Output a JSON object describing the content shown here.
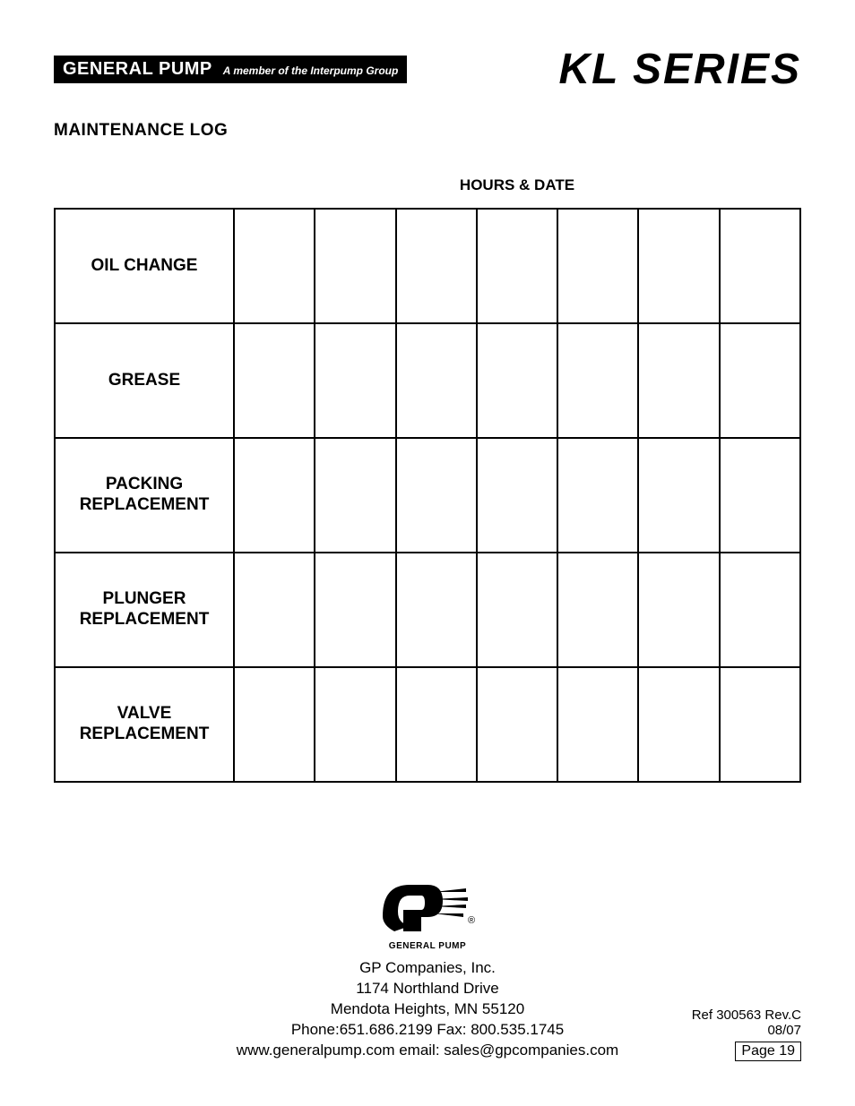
{
  "header": {
    "brand_name": "GENERAL PUMP",
    "brand_tagline": "A member of the Interpump Group",
    "series_title": "KL SERIES"
  },
  "section_title": "MAINTENANCE LOG",
  "table": {
    "header": "HOURS & DATE",
    "rows": [
      {
        "label": "OIL CHANGE"
      },
      {
        "label": "GREASE"
      },
      {
        "label": "PACKING REPLACEMENT"
      },
      {
        "label": "PLUNGER REPLACEMENT"
      },
      {
        "label": "VALVE REPLACEMENT"
      }
    ],
    "data_columns": 7
  },
  "footer": {
    "logo_subtext": "GENERAL PUMP",
    "company_name": "GP Companies, Inc.",
    "address_line1": "1174 Northland Drive",
    "address_line2": "Mendota Heights, MN 55120",
    "phone_fax": "Phone:651.686.2199 Fax: 800.535.1745",
    "web_email": "www.generalpump.com email: sales@gpcompanies.com",
    "ref": "Ref 300563 Rev.C",
    "date": "08/07",
    "page": "Page 19"
  }
}
